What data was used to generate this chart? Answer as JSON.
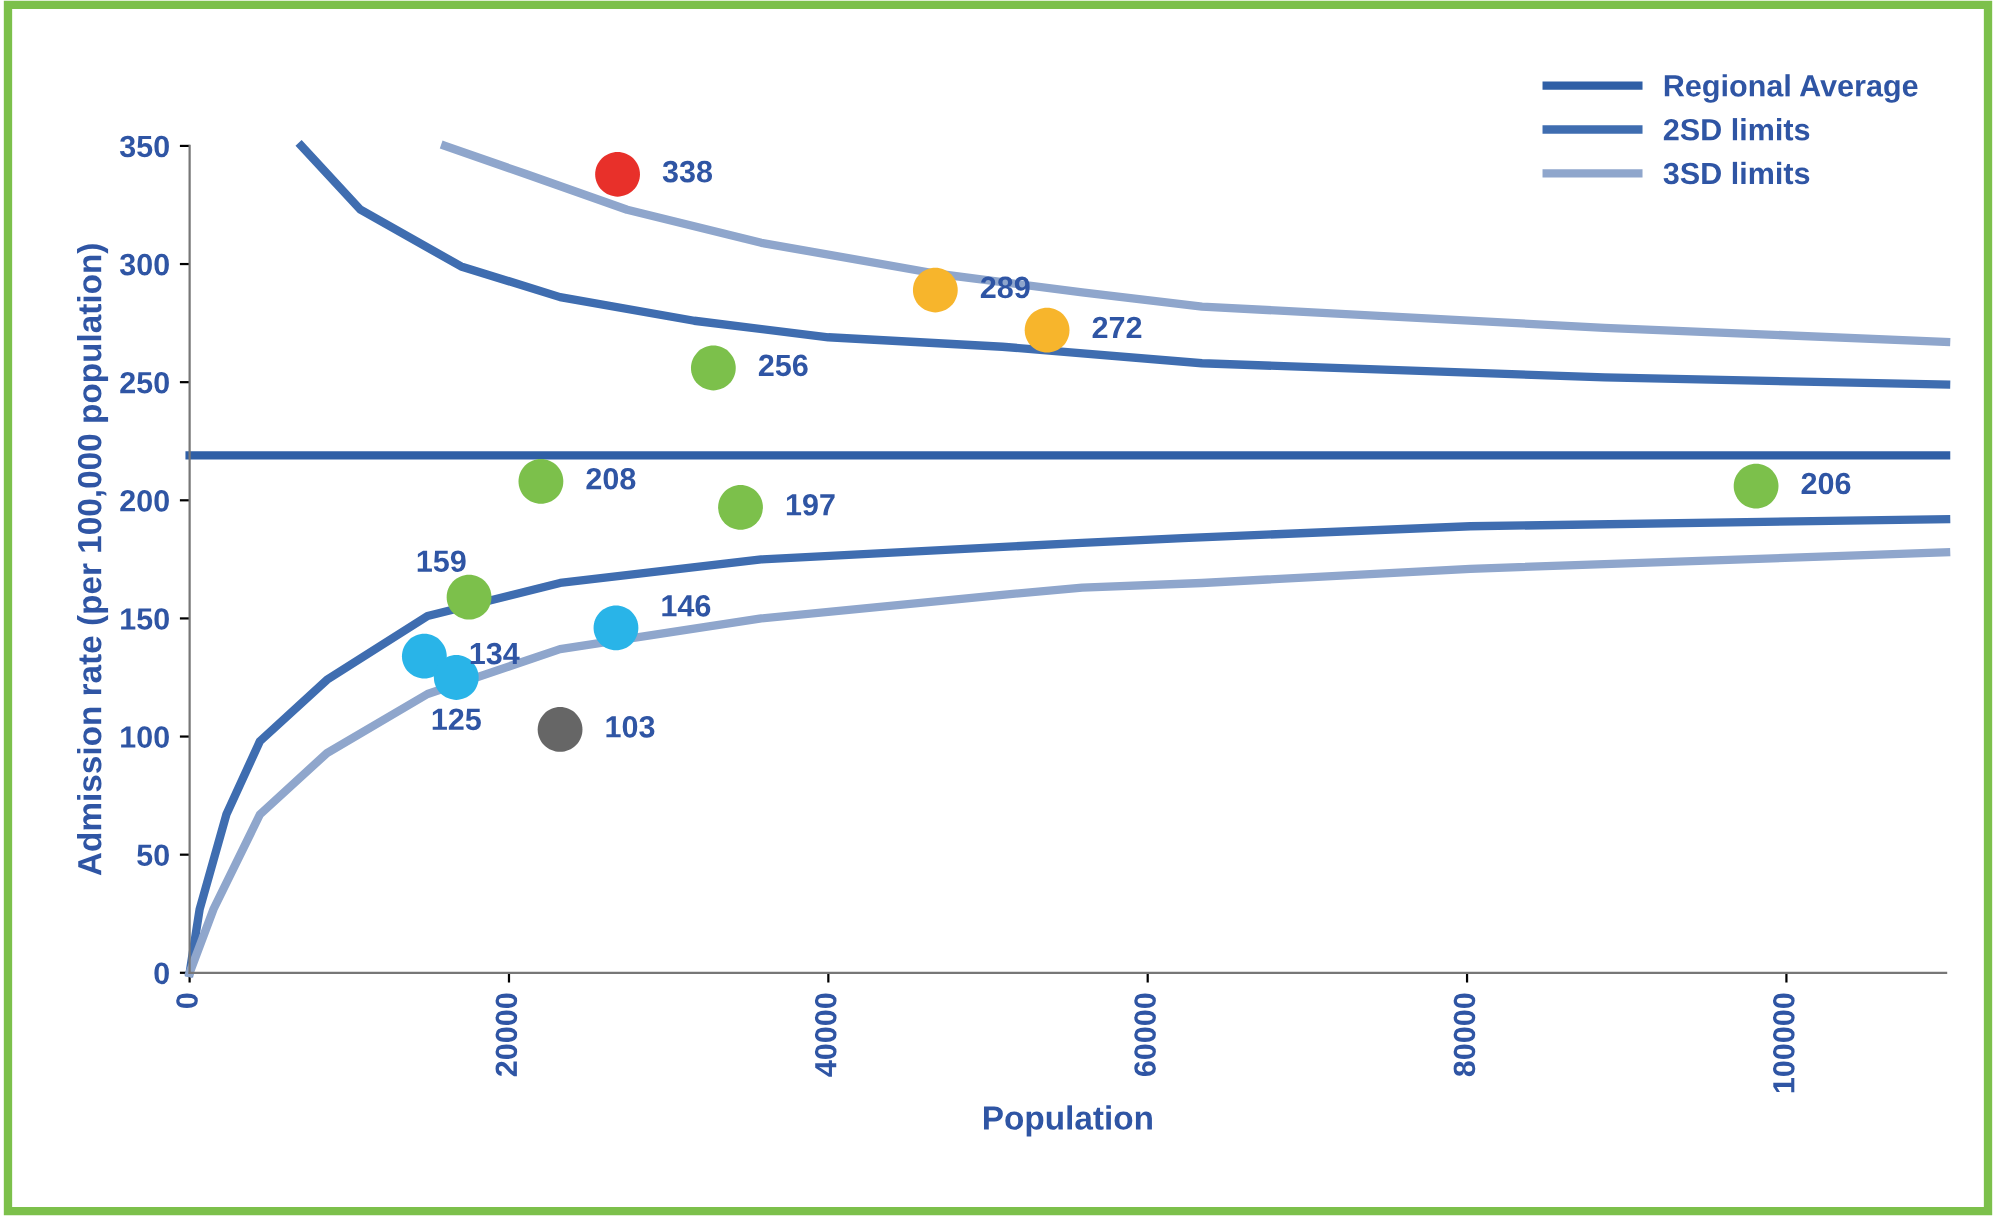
{
  "chart_data": {
    "type": "scatter",
    "xlabel": "Population",
    "ylabel": "Admission rate (per 100,000 population)",
    "xlim": [
      0,
      110000
    ],
    "ylim": [
      0,
      350
    ],
    "xticks": [
      0,
      20000,
      40000,
      60000,
      80000,
      100000
    ],
    "yticks": [
      0,
      50,
      100,
      150,
      200,
      250,
      300,
      350
    ],
    "grid": false,
    "legend": "top right",
    "series": [
      {
        "type": "line",
        "name": "Regional Average",
        "color": "#2f5fa6",
        "x": [
          0,
          110000
        ],
        "values": [
          219,
          219
        ]
      },
      {
        "type": "line",
        "name": "2SD limits",
        "color": "#3f6db0",
        "x": [
          7000,
          10700,
          17000,
          23200,
          31600,
          40000,
          50900,
          63400,
          88600,
          110000
        ],
        "values": [
          350,
          323,
          299,
          286,
          276,
          269,
          265,
          258,
          252,
          249
        ]
      },
      {
        "type": "line",
        "color": "#3f6db0",
        "x": [
          0,
          630,
          2300,
          4400,
          8600,
          14900,
          23200,
          35800,
          55900,
          62200,
          80200,
          110000
        ],
        "values": [
          0,
          27,
          67,
          98,
          124,
          151,
          165,
          175,
          182,
          184,
          189,
          192
        ]
      },
      {
        "type": "line",
        "name": "3SD limits",
        "color": "#8fa6cc",
        "x": [
          16000,
          21100,
          27400,
          35800,
          46700,
          55900,
          63400,
          88600,
          110000
        ],
        "values": [
          350,
          338,
          323,
          309,
          296,
          288,
          282,
          273,
          267
        ]
      },
      {
        "type": "line",
        "color": "#8fa6cc",
        "x": [
          0,
          1500,
          4400,
          8600,
          14900,
          23200,
          35800,
          50900,
          55900,
          63400,
          80200,
          110000
        ],
        "values": [
          0,
          27,
          67,
          93,
          118,
          137,
          150,
          160,
          163,
          165,
          171,
          178
        ]
      },
      {
        "x": [
          26800,
          46700,
          53700,
          32800,
          22000,
          34500,
          98100,
          17500,
          14700,
          16700,
          26700,
          23200
        ],
        "values": [
          338,
          289,
          272,
          256,
          208,
          197,
          206,
          159,
          134,
          125,
          146,
          103
        ],
        "value_labels": [
          "338",
          "289",
          "272",
          "256",
          "208",
          "197",
          "206",
          "159",
          "134",
          "125",
          "146",
          "103"
        ],
        "colors": [
          "#e8302a",
          "#f7b52c",
          "#f7b52c",
          "#7cc04b",
          "#7cc04b",
          "#7cc04b",
          "#7cc04b",
          "#7cc04b",
          "#29b4e8",
          "#29b4e8",
          "#29b4e8",
          "#666666"
        ]
      }
    ]
  }
}
